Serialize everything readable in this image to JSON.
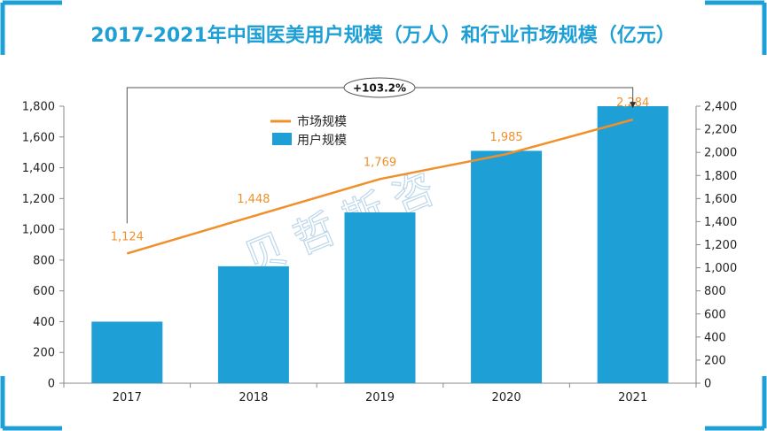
{
  "chart_data": {
    "type": "bar",
    "title": "2017-2021年中国医美用户规模（万人）和行业市场规模（亿元）",
    "categories": [
      "2017",
      "2018",
      "2019",
      "2020",
      "2021"
    ],
    "series": [
      {
        "name": "用户规模",
        "type": "bar",
        "axis": "left",
        "values": [
          400,
          760,
          1110,
          1510,
          1800
        ],
        "color": "#1e9fd6"
      },
      {
        "name": "市场规模",
        "type": "line",
        "axis": "right",
        "values": [
          1124,
          1448,
          1769,
          1985,
          2284
        ],
        "labels": [
          "1,124",
          "1,448",
          "1,769",
          "1,985",
          "2,284"
        ],
        "color": "#f0902b"
      }
    ],
    "y_left": {
      "range": [
        0,
        1800
      ],
      "ticks": [
        0,
        200,
        400,
        600,
        800,
        1000,
        1200,
        1400,
        1600,
        1800
      ],
      "tick_labels": [
        "0",
        "200",
        "400",
        "600",
        "800",
        "1,000",
        "1,200",
        "1,400",
        "1,600",
        "1,800"
      ]
    },
    "y_right": {
      "range": [
        0,
        2400
      ],
      "ticks": [
        0,
        200,
        400,
        600,
        800,
        1000,
        1200,
        1400,
        1600,
        1800,
        2000,
        2200,
        2400
      ],
      "tick_labels": [
        "0",
        "200",
        "400",
        "600",
        "800",
        "1,000",
        "1,200",
        "1,400",
        "1,600",
        "1,800",
        "2,000",
        "2,200",
        "2,400"
      ]
    },
    "annotation": {
      "text": "+103.2%",
      "from": "2017",
      "to": "2021"
    },
    "watermark": "贝哲斯咨",
    "legend": {
      "position": "top-left-inside"
    },
    "grid": false
  },
  "colors": {
    "title": "#1e9fd6",
    "bar": "#1e9fd6",
    "line": "#f0902b",
    "accent_corner": "#1e9fd6"
  }
}
